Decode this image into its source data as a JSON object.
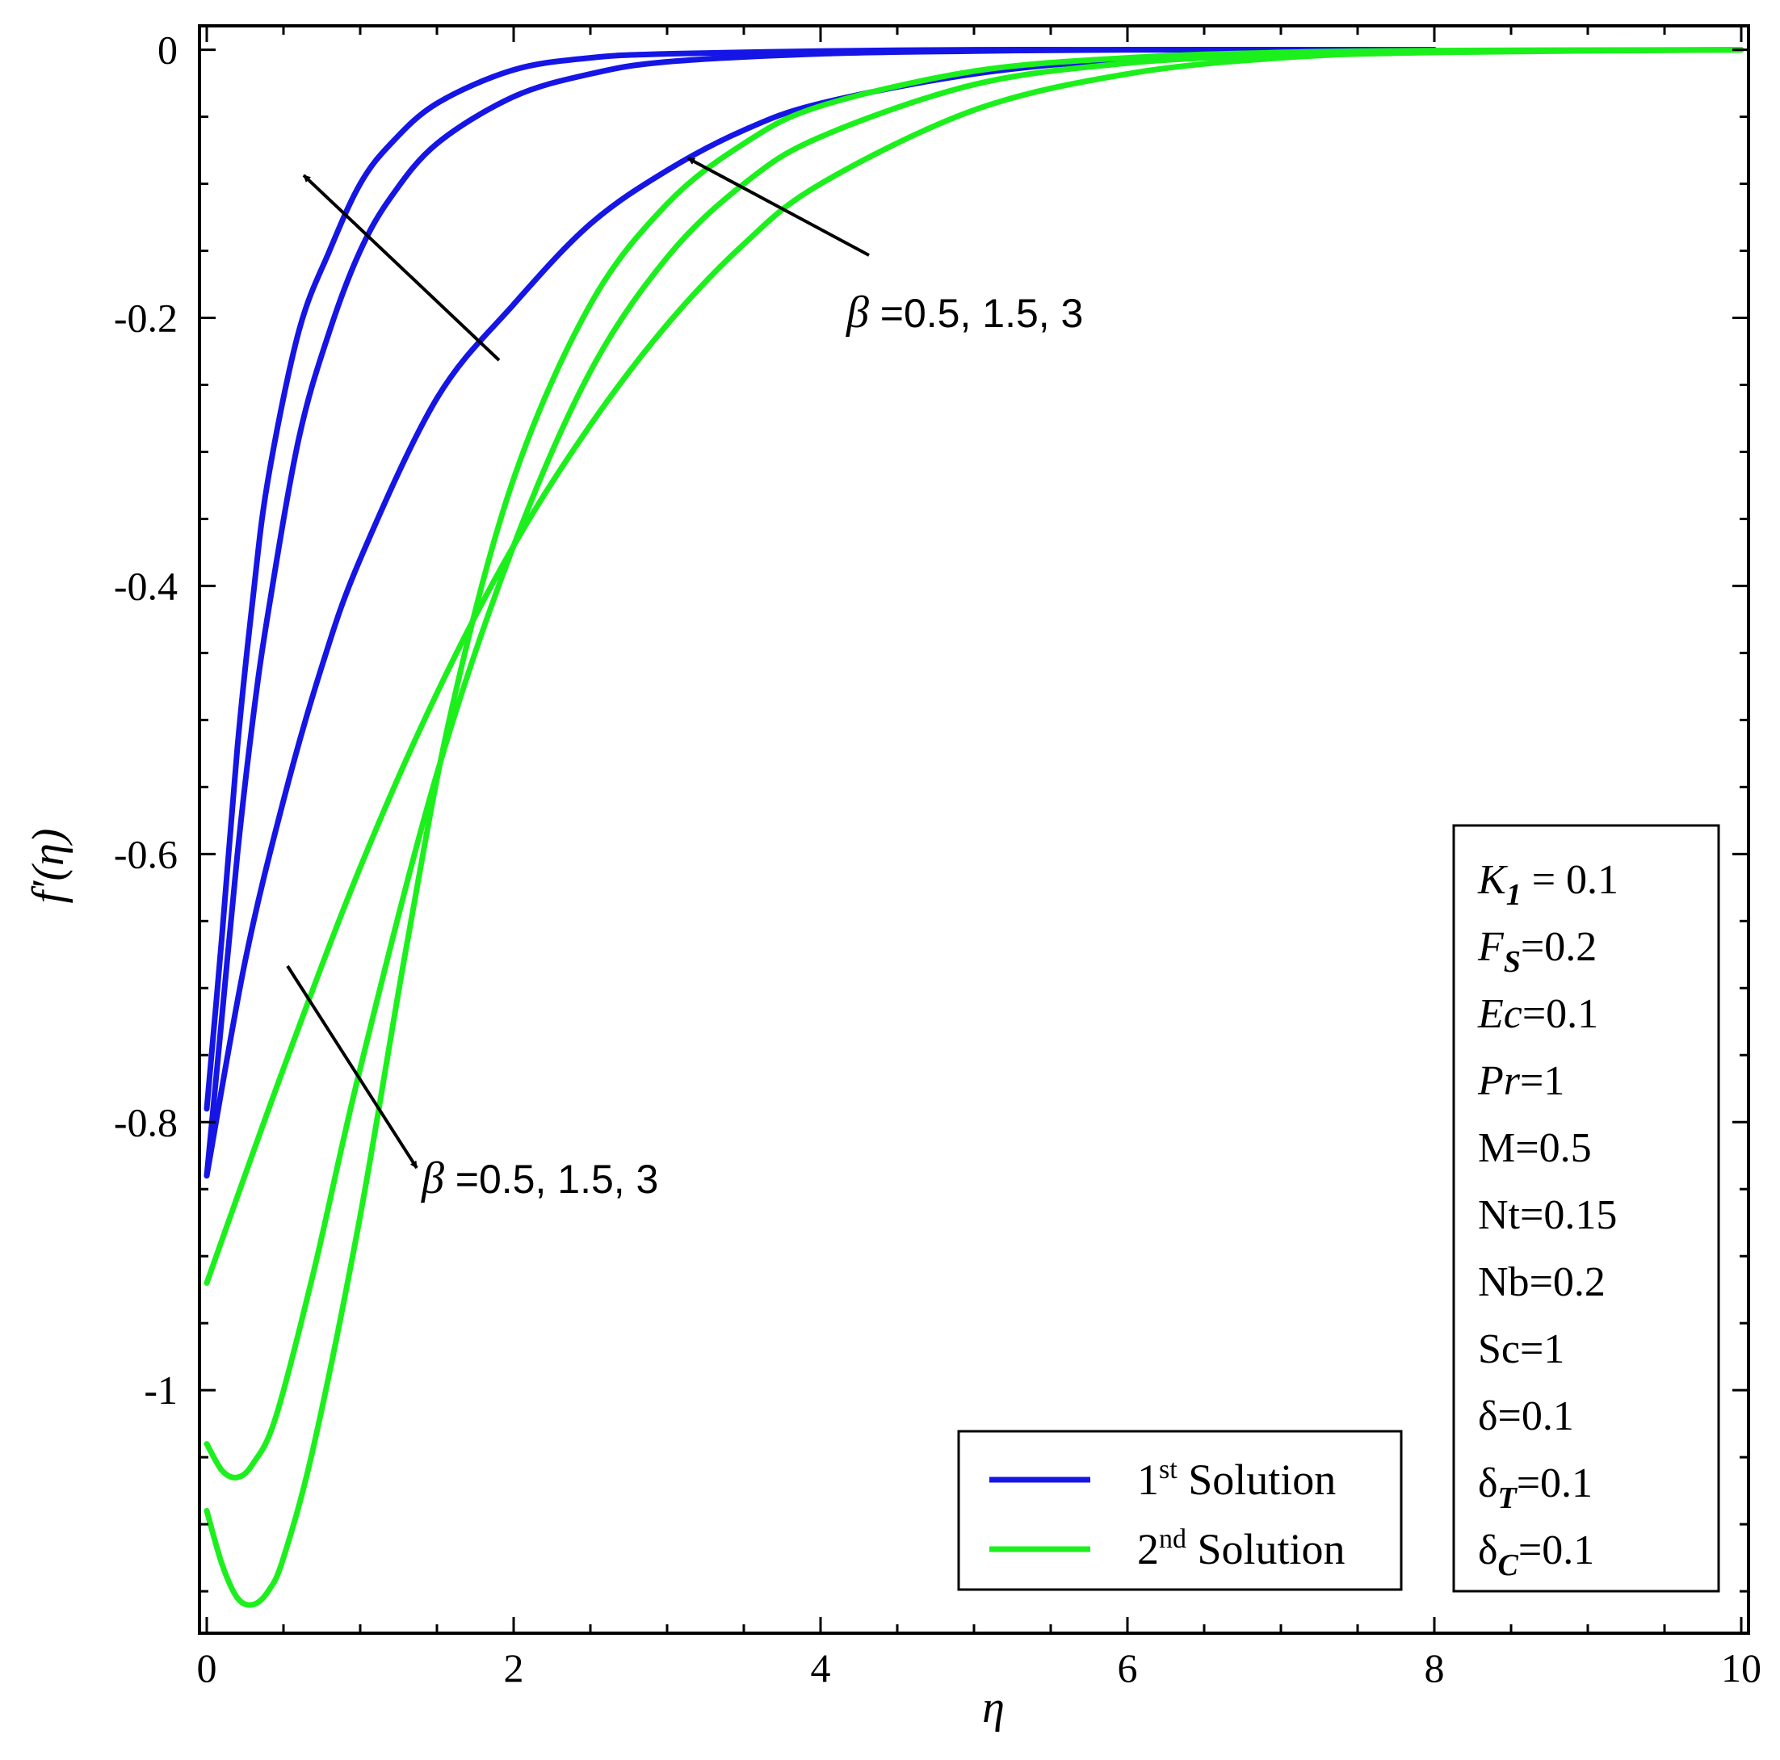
{
  "chart_data": {
    "type": "line",
    "xlabel": "η",
    "ylabel": "f′(η)",
    "xlim": [
      0,
      10
    ],
    "ylim": [
      -1.165,
      0.01
    ],
    "x_ticks": [
      {
        "value": 0,
        "label": "0"
      },
      {
        "value": 2,
        "label": "2"
      },
      {
        "value": 4,
        "label": "4"
      },
      {
        "value": 6,
        "label": "6"
      },
      {
        "value": 8,
        "label": "8"
      },
      {
        "value": 10,
        "label": "10"
      }
    ],
    "y_ticks": [
      {
        "value": 0,
        "label": "0"
      },
      {
        "value": -0.2,
        "label": "-0.2"
      },
      {
        "value": -0.4,
        "label": "-0.4"
      },
      {
        "value": -0.6,
        "label": "-0.6"
      },
      {
        "value": -0.8,
        "label": "-0.8"
      },
      {
        "value": -1,
        "label": "-1"
      }
    ],
    "grid": false,
    "legend_position": "bottom-center",
    "legend": [
      {
        "main": "1",
        "sup": "st",
        "rest": " Solution",
        "color": "#1515e6"
      },
      {
        "main": "2",
        "sup": "nd",
        "rest": " Solution",
        "color": "#1cf01c"
      }
    ],
    "series": [
      {
        "group": "1st Solution",
        "beta": 0.5,
        "color": "#1515e6",
        "x": [
          0,
          0.1,
          0.2,
          0.3,
          0.4,
          0.6,
          0.8,
          1.0,
          1.2,
          1.5,
          2.0,
          2.5,
          3.0,
          4.0,
          5.0,
          6.0,
          8.0
        ],
        "y": [
          -0.79,
          -0.66,
          -0.52,
          -0.41,
          -0.32,
          -0.21,
          -0.15,
          -0.1,
          -0.07,
          -0.04,
          -0.015,
          -0.006,
          -0.003,
          -0.001,
          0,
          0,
          0
        ]
      },
      {
        "group": "1st Solution",
        "beta": 1.5,
        "color": "#1515e6",
        "x": [
          0,
          0.1,
          0.2,
          0.3,
          0.4,
          0.6,
          0.8,
          1.0,
          1.2,
          1.5,
          2.0,
          2.5,
          3.0,
          4.0,
          5.0,
          6.0,
          8.0
        ],
        "y": [
          -0.84,
          -0.72,
          -0.6,
          -0.5,
          -0.42,
          -0.29,
          -0.21,
          -0.15,
          -0.11,
          -0.07,
          -0.035,
          -0.018,
          -0.009,
          -0.003,
          -0.001,
          0,
          0
        ]
      },
      {
        "group": "1st Solution",
        "beta": 3,
        "color": "#1515e6",
        "x": [
          0,
          0.25,
          0.5,
          0.75,
          1.0,
          1.5,
          2.0,
          2.5,
          3.0,
          3.5,
          4.0,
          5.0,
          6.0,
          7.0,
          8.0
        ],
        "y": [
          -0.84,
          -0.68,
          -0.56,
          -0.46,
          -0.38,
          -0.26,
          -0.19,
          -0.13,
          -0.09,
          -0.06,
          -0.04,
          -0.018,
          -0.007,
          -0.002,
          0
        ]
      },
      {
        "group": "2nd Solution",
        "beta": 0.5,
        "color": "#1cf01c",
        "x": [
          0,
          0.5,
          1.0,
          1.5,
          2.0,
          2.5,
          3.0,
          3.5,
          4.0,
          5.0,
          6.0,
          7.0,
          8.0,
          10.0
        ],
        "y": [
          -0.92,
          -0.76,
          -0.61,
          -0.48,
          -0.37,
          -0.28,
          -0.205,
          -0.145,
          -0.1,
          -0.045,
          -0.018,
          -0.006,
          -0.002,
          0
        ]
      },
      {
        "group": "2nd Solution",
        "beta": 1.5,
        "color": "#1cf01c",
        "x": [
          0,
          0.1,
          0.2,
          0.3,
          0.45,
          0.7,
          1.0,
          1.5,
          2.0,
          2.5,
          3.0,
          3.5,
          4.0,
          5.0,
          6.0,
          7.0,
          8.0,
          10.0
        ],
        "y": [
          -1.04,
          -1.06,
          -1.065,
          -1.055,
          -1.02,
          -0.91,
          -0.76,
          -0.54,
          -0.37,
          -0.24,
          -0.155,
          -0.1,
          -0.065,
          -0.026,
          -0.01,
          -0.004,
          -0.0015,
          0
        ]
      },
      {
        "group": "2nd Solution",
        "beta": 3,
        "color": "#1cf01c",
        "x": [
          0,
          0.1,
          0.2,
          0.3,
          0.4,
          0.5,
          0.7,
          1.0,
          1.3,
          1.6,
          2.0,
          2.5,
          3.0,
          3.5,
          4.0,
          5.0,
          6.0,
          7.0,
          8.0,
          10.0
        ],
        "y": [
          -1.09,
          -1.13,
          -1.155,
          -1.16,
          -1.15,
          -1.125,
          -1.04,
          -0.87,
          -0.67,
          -0.49,
          -0.32,
          -0.19,
          -0.115,
          -0.07,
          -0.042,
          -0.016,
          -0.006,
          -0.002,
          -0.0006,
          0
        ]
      }
    ],
    "annotations": [
      {
        "symbol": "β",
        "text": " =0.5, 1.5, 3",
        "position": "upper-middle"
      },
      {
        "symbol": "β",
        "text": " =0.5, 1.5, 3",
        "position": "lower-left"
      }
    ],
    "parameters": [
      {
        "name": "K",
        "sub": "1",
        "value": " = 0.1",
        "italic": true
      },
      {
        "name": "F",
        "sub": "S",
        "value": "=0.2",
        "italic": true
      },
      {
        "name": "Ec",
        "sub": "",
        "value": "=0.1",
        "italic": true
      },
      {
        "name": "Pr",
        "sub": "",
        "value": "=1",
        "italic": true
      },
      {
        "name": "M",
        "sub": "",
        "value": "=0.5",
        "italic": false
      },
      {
        "name": "Nt",
        "sub": "",
        "value": "=0.15",
        "italic": false
      },
      {
        "name": "Nb",
        "sub": "",
        "value": "=0.2",
        "italic": false
      },
      {
        "name": "Sc",
        "sub": "",
        "value": "=1",
        "italic": false
      },
      {
        "name": "δ",
        "sub": "",
        "value": "=0.1",
        "italic": false
      },
      {
        "name": "δ",
        "sub": "T",
        "value": "=0.1",
        "italic": false
      },
      {
        "name": "δ",
        "sub": "C",
        "value": "=0.1",
        "italic": false
      }
    ]
  }
}
